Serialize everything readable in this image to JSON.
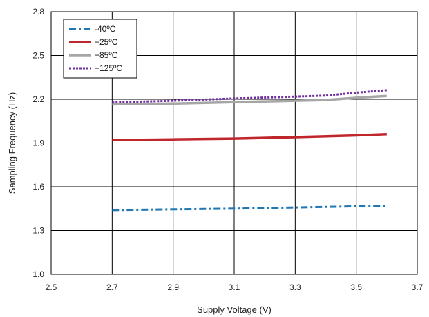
{
  "chart_data": {
    "type": "line",
    "title": "",
    "xlabel": "Supply Voltage (V)",
    "ylabel": "Sampling Frequency (Hz)",
    "xlim": [
      2.5,
      3.7
    ],
    "ylim": [
      1.0,
      2.8
    ],
    "x_ticks": [
      "2.5",
      "2.7",
      "2.9",
      "3.1",
      "3.3",
      "3.5",
      "3.7"
    ],
    "y_ticks": [
      "1.0",
      "1.3",
      "1.6",
      "1.9",
      "2.2",
      "2.5",
      "2.8"
    ],
    "grid": true,
    "legend_position": "top-left",
    "series": [
      {
        "name": "-40ºC",
        "color": "#1f77b4",
        "style": "dashdot",
        "x": [
          2.7,
          2.9,
          3.1,
          3.3,
          3.5,
          3.6
        ],
        "y": [
          1.44,
          1.445,
          1.45,
          1.458,
          1.466,
          1.47
        ]
      },
      {
        "name": "+25ºC",
        "color": "#c0272d",
        "style": "solid",
        "x": [
          2.7,
          2.9,
          3.1,
          3.3,
          3.5,
          3.6
        ],
        "y": [
          1.92,
          1.925,
          1.93,
          1.94,
          1.952,
          1.96
        ]
      },
      {
        "name": "+85ºC",
        "color": "#a6a6a6",
        "style": "solid",
        "x": [
          2.7,
          2.9,
          3.1,
          3.3,
          3.4,
          3.5,
          3.6
        ],
        "y": [
          2.165,
          2.17,
          2.18,
          2.19,
          2.195,
          2.21,
          2.222
        ]
      },
      {
        "name": "+125ºC",
        "color": "#7030a0",
        "style": "dotted",
        "x": [
          2.7,
          2.9,
          3.1,
          3.3,
          3.4,
          3.5,
          3.6
        ],
        "y": [
          2.178,
          2.19,
          2.205,
          2.218,
          2.225,
          2.245,
          2.262
        ]
      }
    ]
  }
}
